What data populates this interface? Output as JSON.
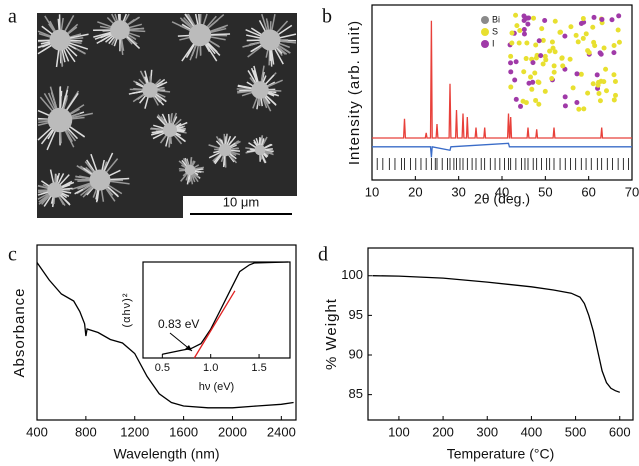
{
  "panel_labels": [
    "a",
    "b",
    "c",
    "d"
  ],
  "image": {
    "scale_bar": "10 μm"
  },
  "chart_data": [
    {
      "type": "line",
      "xlabel": "2θ (deg.)",
      "ylabel": "Intensity (arb. unit)",
      "xlim": [
        10,
        70
      ],
      "xticks": [
        10,
        20,
        30,
        40,
        50,
        60,
        70
      ],
      "ylim": [
        0,
        100
      ],
      "series": [
        {
          "color": "#e8403a",
          "x": [
            10,
            17.3,
            17.5,
            17.7,
            22.3,
            22.5,
            22.7,
            23.5,
            23.7,
            23.9,
            24.8,
            25,
            25.2,
            27.8,
            28,
            28.2,
            29.3,
            29.5,
            29.7,
            30.8,
            31,
            31.2,
            31.8,
            32,
            32.2,
            33.8,
            34,
            34.2,
            35.8,
            36,
            36.2,
            41.3,
            41.5,
            41.7,
            41.8,
            42,
            42.2,
            45.8,
            46,
            46.2,
            47.8,
            48,
            48.2,
            51.8,
            52,
            52.2,
            62.8,
            63,
            63.2,
            70
          ],
          "values": [
            24,
            24,
            35,
            24,
            24,
            27,
            24,
            24,
            91,
            24,
            24,
            32,
            24,
            24,
            55,
            24,
            24,
            40,
            24,
            24,
            38,
            24,
            24,
            36,
            24,
            24,
            30,
            24,
            24,
            30,
            24,
            24,
            38,
            24,
            24,
            36,
            24,
            24,
            30,
            24,
            24,
            29,
            24,
            24,
            30,
            24,
            24,
            30,
            24,
            24
          ]
        },
        {
          "color": "#3a6cc8",
          "x": [
            10,
            23.5,
            23.7,
            23.9,
            28,
            28.2,
            41.5,
            41.7,
            70
          ],
          "values": [
            19,
            19,
            13,
            19,
            17,
            19,
            21,
            19,
            19
          ]
        }
      ],
      "bragg_positions": [
        11.2,
        12.5,
        14.0,
        15.3,
        16.8,
        17.5,
        18.9,
        20.1,
        21.3,
        22.5,
        23.7,
        24.6,
        25.0,
        26.2,
        27.4,
        28.0,
        28.9,
        29.5,
        30.3,
        31.0,
        32.0,
        33.1,
        34.0,
        35.2,
        36.0,
        37.3,
        38.4,
        39.5,
        40.6,
        41.5,
        42.0,
        43.2,
        44.5,
        45.3,
        46.0,
        47.2,
        48.0,
        49.1,
        50.3,
        51.0,
        52.0,
        53.4,
        54.6,
        55.8,
        57.0,
        58.3,
        59.4,
        60.6,
        62.0,
        63.0,
        64.3,
        65.5,
        66.8,
        68.0,
        69.2
      ],
      "legend": [
        {
          "label": "Bi",
          "color": "#8a8a8a"
        },
        {
          "label": "S",
          "color": "#e8e030"
        },
        {
          "label": "I",
          "color": "#a03aa8"
        }
      ]
    },
    {
      "type": "line",
      "xlabel": "Wavelength (nm)",
      "ylabel": "Absorbance",
      "xlim": [
        400,
        2520
      ],
      "xticks": [
        400,
        800,
        1200,
        1600,
        2000,
        2400
      ],
      "ylim": [
        0,
        100
      ],
      "series": [
        {
          "color": "#000000",
          "x": [
            400,
            500,
            600,
            700,
            750,
            790,
            800,
            810,
            900,
            1000,
            1100,
            1200,
            1300,
            1400,
            1500,
            1600,
            1800,
            2000,
            2200,
            2400,
            2500
          ],
          "values": [
            90,
            80,
            72,
            68,
            62,
            55,
            48,
            52,
            50,
            46,
            44,
            38,
            25,
            15,
            10,
            8,
            7,
            7,
            8,
            9,
            10
          ]
        }
      ]
    },
    {
      "type": "line",
      "xlabel": "hν (eV)",
      "ylabel": "(αhν)²",
      "annotation": "0.83 eV",
      "xlim": [
        0.3,
        1.82
      ],
      "xticks": [
        0.5,
        {
          "value": 1.0,
          "label": "1.0"
        },
        1.5
      ],
      "ylim": [
        0,
        100
      ],
      "series": [
        {
          "color": "#000000",
          "x": [
            0.5,
            0.7,
            0.8,
            0.9,
            1.0,
            1.1,
            1.2,
            1.3,
            1.4,
            1.45,
            1.8
          ],
          "values": [
            4,
            8,
            10,
            15,
            30,
            50,
            70,
            90,
            97,
            99,
            100
          ]
        },
        {
          "color": "#e02020",
          "x": [
            0.83,
            1.25
          ],
          "values": [
            0,
            70
          ]
        }
      ]
    },
    {
      "type": "line",
      "xlabel": "Temperature (°C)",
      "ylabel": "% Weight",
      "xlim": [
        30,
        630
      ],
      "xticks": [
        100,
        200,
        300,
        400,
        500,
        600
      ],
      "ylim": [
        81.8,
        103.5
      ],
      "yticks": [
        85,
        90,
        95,
        100
      ],
      "series": [
        {
          "color": "#000000",
          "x": [
            40,
            100,
            200,
            300,
            400,
            450,
            490,
            510,
            520,
            530,
            540,
            550,
            560,
            570,
            580,
            590,
            600
          ],
          "values": [
            100,
            99.95,
            99.7,
            99.2,
            98.6,
            98.2,
            97.8,
            97.3,
            96.5,
            95,
            93,
            90.5,
            88,
            86.5,
            85.8,
            85.5,
            85.3
          ]
        }
      ]
    }
  ]
}
